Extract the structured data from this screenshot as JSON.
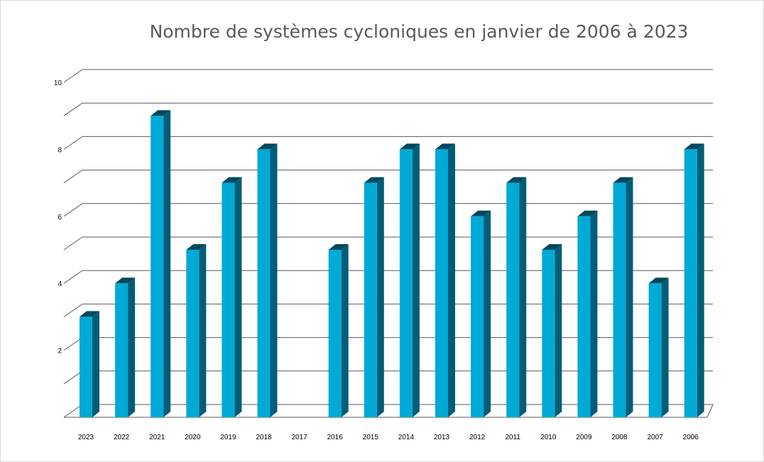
{
  "chart_data": {
    "type": "bar",
    "title": "Nombre de systèmes cycloniques en janvier de 2006 à 2023",
    "xlabel": "",
    "ylabel": "",
    "ylim": [
      0,
      10
    ],
    "yticks": [
      2,
      4,
      6,
      8,
      10
    ],
    "grid": true,
    "legend": "none",
    "style": "3d-column",
    "categories": [
      "2023",
      "2022",
      "2021",
      "2020",
      "2019",
      "2018",
      "2017",
      "2016",
      "2015",
      "2014",
      "2013",
      "2012",
      "2011",
      "2010",
      "2009",
      "2008",
      "2007",
      "2006"
    ],
    "values": [
      3,
      4,
      9,
      5,
      7,
      8,
      0,
      5,
      7,
      8,
      8,
      6,
      7,
      5,
      6,
      7,
      4,
      8
    ],
    "colors": {
      "front": "#00aad6",
      "side": "#005d78",
      "top": "#00485c",
      "grid": "#595959"
    }
  }
}
